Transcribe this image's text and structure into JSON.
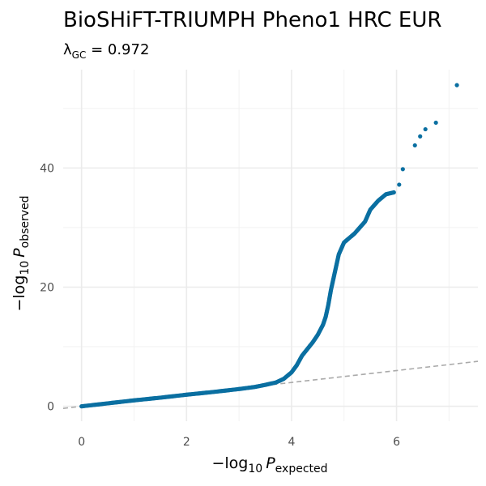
{
  "chart_data": {
    "type": "scatter",
    "title": "BioSHiFT-TRIUMPH Pheno1 HRC EUR",
    "subtitle": {
      "lambda_symbol": "λ",
      "lambda_subscript": "GC",
      "equals": " = ",
      "value": "0.972"
    },
    "xlabel": {
      "prefix": "−log",
      "base": "10",
      "var": "P",
      "subscript": "expected"
    },
    "ylabel": {
      "prefix": "−log",
      "base": "10",
      "var": "P",
      "subscript": "observed"
    },
    "xlim": [
      -0.35,
      7.55
    ],
    "ylim": [
      -2.5,
      56.5
    ],
    "x_ticks": [
      0,
      2,
      4,
      6
    ],
    "y_ticks": [
      0,
      20,
      40
    ],
    "x_tick_labels": [
      "0",
      "2",
      "4",
      "6"
    ],
    "y_tick_labels": [
      "0",
      "20",
      "40"
    ],
    "grid": true,
    "reference_line": {
      "slope": 1,
      "intercept": 0,
      "style": "dashed",
      "color": "#aaaaaa"
    },
    "point_color": "#0a6fa1",
    "curve_points": [
      [
        0.0,
        0.0
      ],
      [
        0.5,
        0.5
      ],
      [
        1.0,
        1.0
      ],
      [
        1.5,
        1.45
      ],
      [
        2.0,
        1.95
      ],
      [
        2.5,
        2.4
      ],
      [
        3.0,
        2.9
      ],
      [
        3.3,
        3.25
      ],
      [
        3.5,
        3.6
      ],
      [
        3.7,
        4.0
      ],
      [
        3.85,
        4.6
      ],
      [
        4.0,
        5.7
      ],
      [
        4.1,
        6.9
      ],
      [
        4.2,
        8.5
      ],
      [
        4.3,
        9.6
      ],
      [
        4.4,
        10.7
      ],
      [
        4.5,
        12.0
      ],
      [
        4.6,
        13.7
      ],
      [
        4.65,
        15.0
      ],
      [
        4.7,
        17.0
      ],
      [
        4.75,
        19.5
      ],
      [
        4.8,
        21.5
      ],
      [
        4.85,
        23.5
      ],
      [
        4.9,
        25.5
      ],
      [
        4.95,
        26.5
      ],
      [
        5.0,
        27.5
      ],
      [
        5.2,
        29.0
      ],
      [
        5.4,
        31.0
      ],
      [
        5.5,
        33.0
      ],
      [
        5.65,
        34.5
      ],
      [
        5.8,
        35.6
      ],
      [
        5.95,
        35.9
      ]
    ],
    "outlier_points": [
      [
        6.05,
        37.2
      ],
      [
        6.12,
        39.8
      ],
      [
        6.35,
        43.8
      ],
      [
        6.45,
        45.3
      ],
      [
        6.55,
        46.5
      ],
      [
        6.75,
        47.6
      ],
      [
        7.15,
        53.9
      ]
    ]
  }
}
